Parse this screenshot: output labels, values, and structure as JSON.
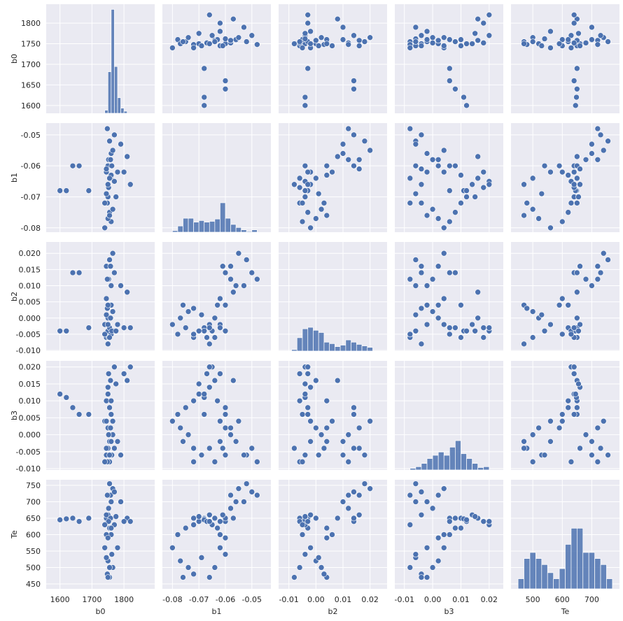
{
  "chart_data": {
    "type": "pairplot",
    "color": "#4c72b0",
    "grid": true,
    "variables": [
      {
        "name": "b0",
        "xlim": [
          1557,
          1896
        ],
        "ylim": [
          1581,
          1846
        ],
        "xticks": [
          1600,
          1700,
          1800
        ],
        "yticks": [
          1600,
          1650,
          1700,
          1750,
          1800
        ],
        "values": [
          1750,
          1745,
          1755,
          1760,
          1740,
          1750,
          1765,
          1755,
          1748,
          1745,
          1690,
          1620,
          1600,
          1750,
          1758,
          1752,
          1770,
          1760,
          1745,
          1750,
          1780,
          1762,
          1755,
          1750,
          1660,
          1640,
          1745,
          1752,
          1760,
          1758,
          1765,
          1755,
          1770,
          1748,
          1790,
          1810,
          1800,
          1820,
          1775,
          1740
        ],
        "hist": {
          "bins": [
            1740,
            1750,
            1760,
            1770,
            1780,
            1790,
            1800,
            1810
          ],
          "counts": [
            3,
            40,
            100,
            45,
            15,
            5,
            2
          ],
          "ylim": [
            0,
            105
          ]
        }
      },
      {
        "name": "b1",
        "xlim": [
          -0.0838,
          -0.0428
        ],
        "ylim": [
          -0.0814,
          -0.0462
        ],
        "xticks": [
          -0.08,
          -0.07,
          -0.06,
          -0.05
        ],
        "yticks": [
          -0.08,
          -0.07,
          -0.06,
          -0.05
        ],
        "values": [
          -0.07,
          -0.072,
          -0.075,
          -0.078,
          -0.08,
          -0.077,
          -0.074,
          -0.076,
          -0.072,
          -0.069,
          -0.068,
          -0.068,
          -0.068,
          -0.066,
          -0.064,
          -0.067,
          -0.065,
          -0.063,
          -0.062,
          -0.06,
          -0.062,
          -0.06,
          -0.064,
          -0.066,
          -0.06,
          -0.06,
          -0.061,
          -0.058,
          -0.056,
          -0.058,
          -0.055,
          -0.052,
          -0.05,
          -0.048,
          -0.053,
          -0.057,
          -0.062,
          -0.066,
          -0.07,
          -0.072
        ],
        "hist": {
          "bins": [
            -0.08,
            -0.078,
            -0.076,
            -0.074,
            -0.072,
            -0.07,
            -0.068,
            -0.066,
            -0.064,
            -0.062,
            -0.06,
            -0.058,
            -0.056,
            -0.054,
            -0.052,
            -0.05,
            -0.048
          ],
          "counts": [
            2,
            8,
            18,
            18,
            13,
            15,
            13,
            14,
            17,
            38,
            18,
            10,
            6,
            3,
            1,
            3
          ],
          "ylim": [
            0,
            141
          ]
        }
      },
      {
        "name": "b2",
        "xlim": [
          -0.0138,
          0.0263
        ],
        "ylim": [
          -0.0102,
          0.0235
        ],
        "xticks": [
          -0.01,
          {
            "value": 0,
            "label": "0.00"
          },
          0.01,
          0.02
        ],
        "yticks": [
          {
            "value": -0.01,
            "label": "-0.010"
          },
          -0.005,
          {
            "value": 0,
            "label": "0.000"
          },
          0.005,
          {
            "value": 0.01,
            "label": "0.010"
          },
          0.015,
          {
            "value": 0.02,
            "label": "0.020"
          }
        ],
        "values": [
          -0.004,
          -0.006,
          -0.003,
          -0.005,
          -0.002,
          0.0,
          0.002,
          0.004,
          0.003,
          0.001,
          -0.003,
          -0.004,
          -0.004,
          -0.002,
          0.0,
          -0.006,
          -0.004,
          0.004,
          0.006,
          0.004,
          -0.002,
          -0.004,
          -0.006,
          -0.008,
          0.014,
          0.014,
          0.016,
          0.012,
          0.01,
          0.016,
          0.02,
          0.018,
          0.014,
          0.012,
          0.01,
          0.008,
          -0.003,
          -0.003,
          -0.004,
          -0.005
        ],
        "hist": {
          "bins": [
            -0.009,
            -0.007,
            -0.005,
            -0.003,
            -0.001,
            0.001,
            0.003,
            0.005,
            0.007,
            0.009,
            0.011,
            0.013,
            0.015,
            0.017,
            0.019,
            0.021
          ],
          "counts": [
            2,
            18,
            30,
            32,
            28,
            25,
            12,
            10,
            6,
            8,
            15,
            12,
            9,
            7,
            5
          ],
          "ylim": [
            0,
            147
          ]
        }
      },
      {
        "name": "b3",
        "xlim": [
          -0.0134,
          0.025
        ],
        "ylim": [
          -0.0104,
          0.0218
        ],
        "xticks": [
          -0.01,
          {
            "value": 0,
            "label": "0.00"
          },
          0.01,
          0.02
        ],
        "yticks": [
          {
            "value": -0.01,
            "label": "-0.010"
          },
          -0.005,
          {
            "value": 0,
            "label": "0.000"
          },
          0.005,
          {
            "value": 0.01,
            "label": "0.010"
          },
          0.015,
          {
            "value": 0.02,
            "label": "0.020"
          }
        ],
        "values": [
          0.012,
          0.01,
          0.008,
          0.006,
          0.004,
          0.002,
          0.0,
          -0.002,
          -0.004,
          -0.006,
          0.006,
          0.011,
          0.012,
          0.014,
          0.016,
          0.018,
          0.02,
          0.01,
          0.004,
          0.002,
          -0.002,
          -0.006,
          -0.008,
          -0.004,
          0.006,
          0.008,
          -0.004,
          0.0,
          -0.002,
          0.002,
          0.004,
          -0.006,
          -0.004,
          -0.008,
          -0.006,
          0.016,
          0.018,
          0.02,
          0.015,
          -0.008
        ],
        "hist": {
          "bins": [
            -0.008,
            -0.006,
            -0.004,
            -0.002,
            0.0,
            0.002,
            0.004,
            0.006,
            0.008,
            0.01,
            0.012,
            0.014,
            0.016,
            0.018,
            0.02
          ],
          "counts": [
            2,
            4,
            8,
            14,
            18,
            22,
            18,
            28,
            36,
            20,
            14,
            8,
            3,
            4
          ],
          "ylim": [
            0,
            134
          ]
        }
      },
      {
        "name": "Te",
        "xlim": [
          426,
          794
        ],
        "ylim": [
          435,
          767
        ],
        "xticks": [
          500,
          600,
          700
        ],
        "yticks": [
          450,
          500,
          550,
          600,
          650,
          700,
          750
        ],
        "values": [
          640,
          650,
          620,
          600,
          560,
          520,
          500,
          470,
          480,
          530,
          650,
          648,
          645,
          660,
          650,
          640,
          630,
          620,
          600,
          590,
          560,
          540,
          500,
          470,
          640,
          650,
          660,
          680,
          700,
          720,
          740,
          755,
          730,
          720,
          700,
          650,
          640,
          640,
          655,
          630
        ],
        "hist": {
          "bins": [
            450,
            470,
            490,
            510,
            530,
            550,
            570,
            590,
            610,
            630,
            650,
            670,
            690,
            710,
            730,
            750,
            770
          ],
          "counts": [
            5,
            15,
            18,
            15,
            12,
            8,
            5,
            10,
            22,
            30,
            30,
            18,
            18,
            15,
            12,
            5
          ],
          "ylim": [
            0,
            54
          ]
        }
      }
    ]
  }
}
